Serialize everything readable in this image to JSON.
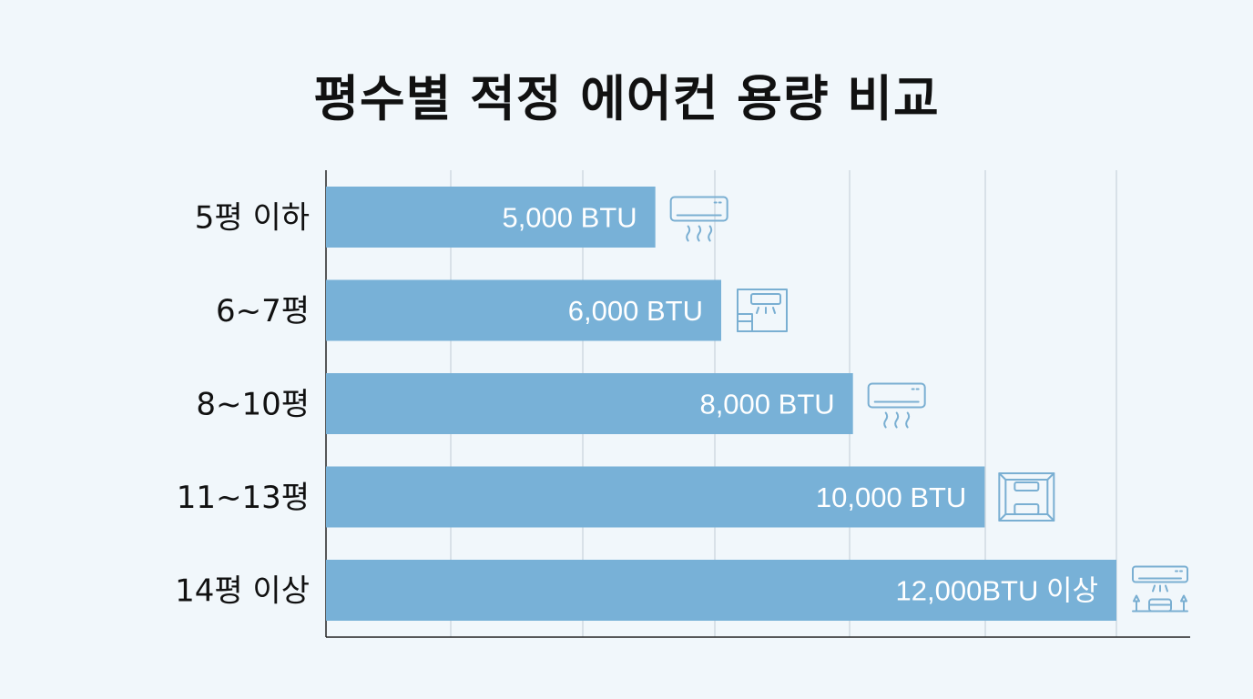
{
  "chart_data": {
    "type": "bar",
    "orientation": "horizontal",
    "title": "평수별 적정 에어컨 용량 비교",
    "categories": [
      "5평 이하",
      "6~7평",
      "8~10평",
      "11~13평",
      "14평 이상"
    ],
    "values": [
      5000,
      6000,
      8000,
      10000,
      12000
    ],
    "value_labels": [
      "5,000 BTU",
      "6,000 BTU",
      "8,000 BTU",
      "10,000 BTU",
      "12,000BTU 이상"
    ],
    "icons": [
      "wall-ac-icon",
      "room-ac-icon",
      "wall-ac-icon",
      "room-box-icon",
      "living-room-ac-icon"
    ],
    "unit": "BTU",
    "xlim": [
      0,
      13000
    ],
    "grid": true,
    "bar_color": "#78b1d7",
    "icon_color": "#7aafd2",
    "grid_color": "#c9d3db",
    "axis_color": "#222222"
  }
}
